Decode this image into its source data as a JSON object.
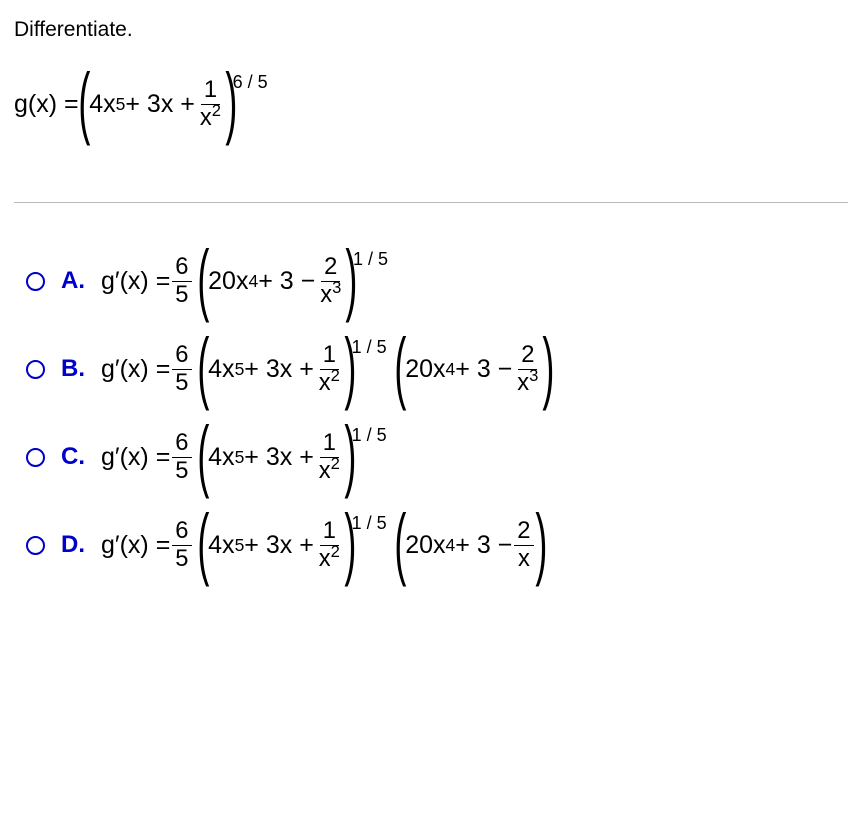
{
  "instruction": "Differentiate.",
  "function_lhs": "g(x) = ",
  "outer_exp": "6 / 5",
  "inner_a": "4x",
  "inner_a_exp": "5",
  "inner_b": " + 3x + ",
  "inner_frac_num": "1",
  "inner_frac_den_base": "x",
  "inner_frac_den_exp": "2",
  "choice_lhs": "g′(x) = ",
  "coef_num": "6",
  "coef_den": "5",
  "options": {
    "A": {
      "label": "A.",
      "t1": "20x",
      "t1_exp": "4",
      "t2": " + 3 − ",
      "t3_num": "2",
      "t3_den_base": "x",
      "t3_den_exp": "3",
      "outer_exp": "1 / 5",
      "has_tail": false
    },
    "B": {
      "label": "B.",
      "t1": "4x",
      "t1_exp": "5",
      "t2": " + 3x + ",
      "t3_num": "1",
      "t3_den_base": "x",
      "t3_den_exp": "2",
      "outer_exp": "1 / 5",
      "has_tail": true,
      "tail_t1": "20x",
      "tail_t1_exp": "4",
      "tail_t2": " + 3 − ",
      "tail_t3_num": "2",
      "tail_t3_den_base": "x",
      "tail_t3_den_exp": "3"
    },
    "C": {
      "label": "C.",
      "t1": "4x",
      "t1_exp": "5",
      "t2": " + 3x + ",
      "t3_num": "1",
      "t3_den_base": "x",
      "t3_den_exp": "2",
      "outer_exp": "1 / 5",
      "has_tail": false
    },
    "D": {
      "label": "D.",
      "t1": "4x",
      "t1_exp": "5",
      "t2": " + 3x + ",
      "t3_num": "1",
      "t3_den_base": "x",
      "t3_den_exp": "2",
      "outer_exp": "1 / 5",
      "has_tail": true,
      "tail_t1": "20x",
      "tail_t1_exp": "4",
      "tail_t2": " + 3 − ",
      "tail_t3_num": "2",
      "tail_t3_den_base": "x",
      "tail_t3_den_exp": ""
    }
  },
  "colors": {
    "text": "#000000",
    "option_blue": "#0000cc",
    "divider": "#bbbbbb",
    "background": "#ffffff"
  }
}
